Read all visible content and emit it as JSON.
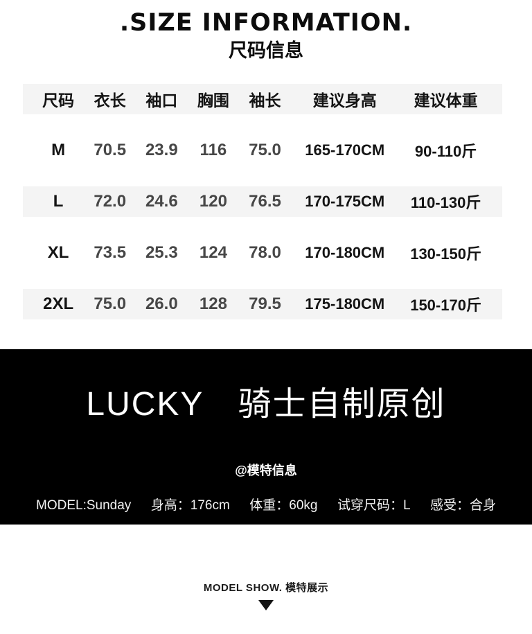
{
  "header": {
    "title_en": ".SIZE INFORMATION.",
    "title_zh": "尺码信息"
  },
  "size_table": {
    "columns": [
      "尺码",
      "衣长",
      "袖口",
      "胸围",
      "袖长",
      "建议身高",
      "建议体重"
    ],
    "rows": [
      {
        "size": "M",
        "length": "70.5",
        "cuff": "23.9",
        "chest": "116",
        "sleeve": "75.0",
        "height": "165-170CM",
        "weight": "90-110斤"
      },
      {
        "size": "L",
        "length": "72.0",
        "cuff": "24.6",
        "chest": "120",
        "sleeve": "76.5",
        "height": "170-175CM",
        "weight": "110-130斤"
      },
      {
        "size": "XL",
        "length": "73.5",
        "cuff": "25.3",
        "chest": "124",
        "sleeve": "78.0",
        "height": "170-180CM",
        "weight": "130-150斤"
      },
      {
        "size": "2XL",
        "length": "75.0",
        "cuff": "26.0",
        "chest": "128",
        "sleeve": "79.5",
        "height": "175-180CM",
        "weight": "150-170斤"
      }
    ]
  },
  "brand_banner": {
    "title": "LUCKY　骑士自制原创",
    "model_info_heading": "@模特信息",
    "model_info": {
      "name": "MODEL:Sunday",
      "height": "身高：176cm",
      "weight": "体重：60kg",
      "size_worn": "试穿尺码：L",
      "fit": "感受：合身"
    }
  },
  "footer": {
    "model_show_label": "MODEL SHOW. 模特展示",
    "arrow_icon": "down-triangle"
  },
  "colors": {
    "banner_bg": "#000000",
    "stripe_bg": "#f4f4f4",
    "value_text": "#474747",
    "heading_text": "#0d0d0d"
  }
}
